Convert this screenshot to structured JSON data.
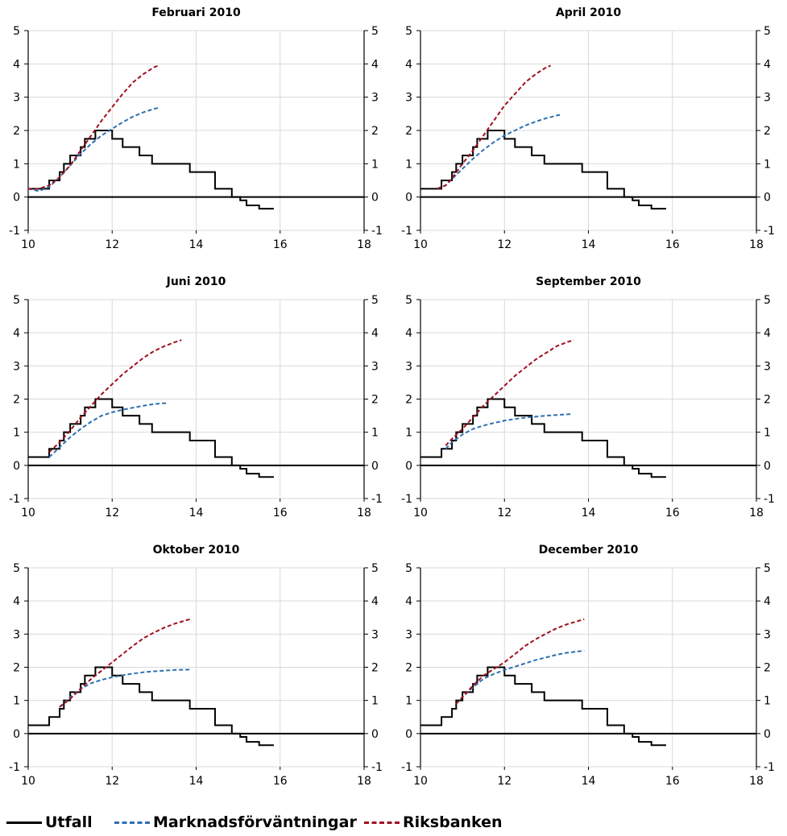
{
  "chart_data": {
    "type": "line",
    "x_ticks": [
      10,
      12,
      14,
      16,
      18
    ],
    "y_ticks": [
      -1,
      0,
      1,
      2,
      3,
      4,
      5
    ],
    "xlim": [
      10,
      18
    ],
    "ylim": [
      -1,
      5
    ],
    "grid": true,
    "legend_placement": "bottom",
    "colors": {
      "utfall": "#000000",
      "marknad": "#2e6fb0",
      "riksbanken": "#a01020"
    },
    "legend": [
      {
        "key": "utfall",
        "label": "Utfall"
      },
      {
        "key": "marknad",
        "label": "Marknadsförväntningar"
      },
      {
        "key": "riksbanken",
        "label": "Riksbanken"
      }
    ],
    "utfall_step": {
      "x": [
        10.0,
        10.5,
        10.6,
        10.75,
        10.85,
        11.0,
        11.1,
        11.25,
        11.35,
        11.5,
        11.6,
        11.85,
        12.0,
        12.1,
        12.25,
        12.65,
        12.95,
        13.85,
        14.45,
        14.85,
        15.05,
        15.2,
        15.45,
        15.5,
        15.85
      ],
      "y": [
        0.25,
        0.5,
        0.5,
        0.75,
        1.0,
        1.25,
        1.25,
        1.5,
        1.75,
        1.75,
        2.0,
        2.0,
        1.75,
        1.75,
        1.5,
        1.25,
        1.0,
        0.75,
        0.25,
        0.0,
        -0.1,
        -0.25,
        -0.25,
        -0.35,
        -0.35
      ]
    },
    "panels": [
      {
        "title": "Februari 2010",
        "utfall_start": 10.0,
        "marknad": {
          "x": [
            10.0,
            10.25,
            10.5,
            10.75,
            11.0,
            11.25,
            11.5,
            11.75,
            12.0,
            12.25,
            12.5,
            12.75,
            13.0,
            13.1
          ],
          "y": [
            0.25,
            0.18,
            0.3,
            0.6,
            0.95,
            1.3,
            1.6,
            1.85,
            2.05,
            2.25,
            2.42,
            2.55,
            2.65,
            2.68
          ]
        },
        "riksbanken": {
          "x": [
            10.0,
            10.25,
            10.5,
            10.75,
            11.0,
            11.25,
            11.5,
            11.75,
            12.0,
            12.25,
            12.5,
            12.75,
            13.0,
            13.1
          ],
          "y": [
            0.25,
            0.25,
            0.35,
            0.6,
            0.95,
            1.4,
            1.85,
            2.3,
            2.7,
            3.1,
            3.45,
            3.7,
            3.9,
            3.95
          ]
        }
      },
      {
        "title": "April 2010",
        "utfall_start": 10.0,
        "marknad": {
          "x": [
            10.4,
            10.6,
            10.8,
            11.0,
            11.25,
            11.5,
            11.75,
            12.0,
            12.25,
            12.5,
            12.75,
            13.0,
            13.25,
            13.35
          ],
          "y": [
            0.25,
            0.35,
            0.6,
            0.85,
            1.15,
            1.42,
            1.65,
            1.85,
            2.0,
            2.15,
            2.27,
            2.37,
            2.45,
            2.48
          ]
        },
        "riksbanken": {
          "x": [
            10.4,
            10.6,
            10.8,
            11.0,
            11.25,
            11.5,
            11.75,
            12.0,
            12.25,
            12.5,
            12.75,
            13.0,
            13.1
          ],
          "y": [
            0.25,
            0.35,
            0.65,
            1.0,
            1.4,
            1.85,
            2.3,
            2.75,
            3.1,
            3.45,
            3.7,
            3.9,
            3.95
          ]
        }
      },
      {
        "title": "Juni 2010",
        "utfall_start": 10.0,
        "marknad": {
          "x": [
            10.5,
            10.75,
            11.0,
            11.25,
            11.5,
            11.75,
            12.0,
            12.25,
            12.5,
            12.75,
            13.0,
            13.3
          ],
          "y": [
            0.25,
            0.55,
            0.85,
            1.1,
            1.32,
            1.5,
            1.6,
            1.68,
            1.74,
            1.8,
            1.85,
            1.88
          ]
        },
        "riksbanken": {
          "x": [
            10.5,
            10.75,
            11.0,
            11.25,
            11.5,
            11.75,
            12.0,
            12.25,
            12.5,
            12.75,
            13.0,
            13.25,
            13.5,
            13.65
          ],
          "y": [
            0.4,
            0.7,
            1.05,
            1.45,
            1.8,
            2.15,
            2.45,
            2.75,
            3.0,
            3.25,
            3.45,
            3.6,
            3.72,
            3.78
          ]
        }
      },
      {
        "title": "September 2010",
        "utfall_start": 10.0,
        "marknad": {
          "x": [
            10.6,
            10.75,
            11.0,
            11.25,
            11.5,
            11.75,
            12.0,
            12.25,
            12.5,
            12.75,
            13.0,
            13.25,
            13.6
          ],
          "y": [
            0.5,
            0.7,
            0.93,
            1.1,
            1.2,
            1.28,
            1.35,
            1.4,
            1.44,
            1.47,
            1.5,
            1.52,
            1.55
          ]
        },
        "riksbanken": {
          "x": [
            10.6,
            10.75,
            11.0,
            11.25,
            11.5,
            11.75,
            12.0,
            12.25,
            12.5,
            12.75,
            13.0,
            13.25,
            13.5,
            13.65
          ],
          "y": [
            0.6,
            0.8,
            1.1,
            1.45,
            1.8,
            2.1,
            2.4,
            2.7,
            2.95,
            3.2,
            3.4,
            3.6,
            3.72,
            3.78
          ]
        }
      },
      {
        "title": "Oktober 2010",
        "utfall_start": 10.0,
        "marknad": {
          "x": [
            10.75,
            11.0,
            11.25,
            11.5,
            11.75,
            12.0,
            12.25,
            12.5,
            12.75,
            13.0,
            13.25,
            13.5,
            13.85
          ],
          "y": [
            0.8,
            1.1,
            1.35,
            1.52,
            1.62,
            1.7,
            1.76,
            1.81,
            1.85,
            1.88,
            1.9,
            1.92,
            1.93
          ]
        },
        "riksbanken": {
          "x": [
            10.75,
            11.0,
            11.25,
            11.5,
            11.75,
            12.0,
            12.25,
            12.5,
            12.75,
            13.0,
            13.25,
            13.5,
            13.85
          ],
          "y": [
            0.8,
            1.05,
            1.35,
            1.65,
            1.9,
            2.15,
            2.4,
            2.65,
            2.88,
            3.05,
            3.2,
            3.32,
            3.45
          ]
        }
      },
      {
        "title": "December 2010",
        "utfall_start": 10.0,
        "marknad": {
          "x": [
            10.85,
            11.0,
            11.25,
            11.5,
            11.75,
            12.0,
            12.25,
            12.5,
            12.75,
            13.0,
            13.25,
            13.5,
            13.9
          ],
          "y": [
            0.9,
            1.1,
            1.4,
            1.65,
            1.8,
            1.92,
            2.02,
            2.12,
            2.22,
            2.3,
            2.38,
            2.44,
            2.5
          ]
        },
        "riksbanken": {
          "x": [
            10.85,
            11.0,
            11.25,
            11.5,
            11.75,
            12.0,
            12.25,
            12.5,
            12.75,
            13.0,
            13.25,
            13.5,
            13.9
          ],
          "y": [
            0.9,
            1.1,
            1.45,
            1.75,
            1.95,
            2.15,
            2.4,
            2.65,
            2.85,
            3.02,
            3.18,
            3.3,
            3.45
          ]
        }
      }
    ]
  }
}
